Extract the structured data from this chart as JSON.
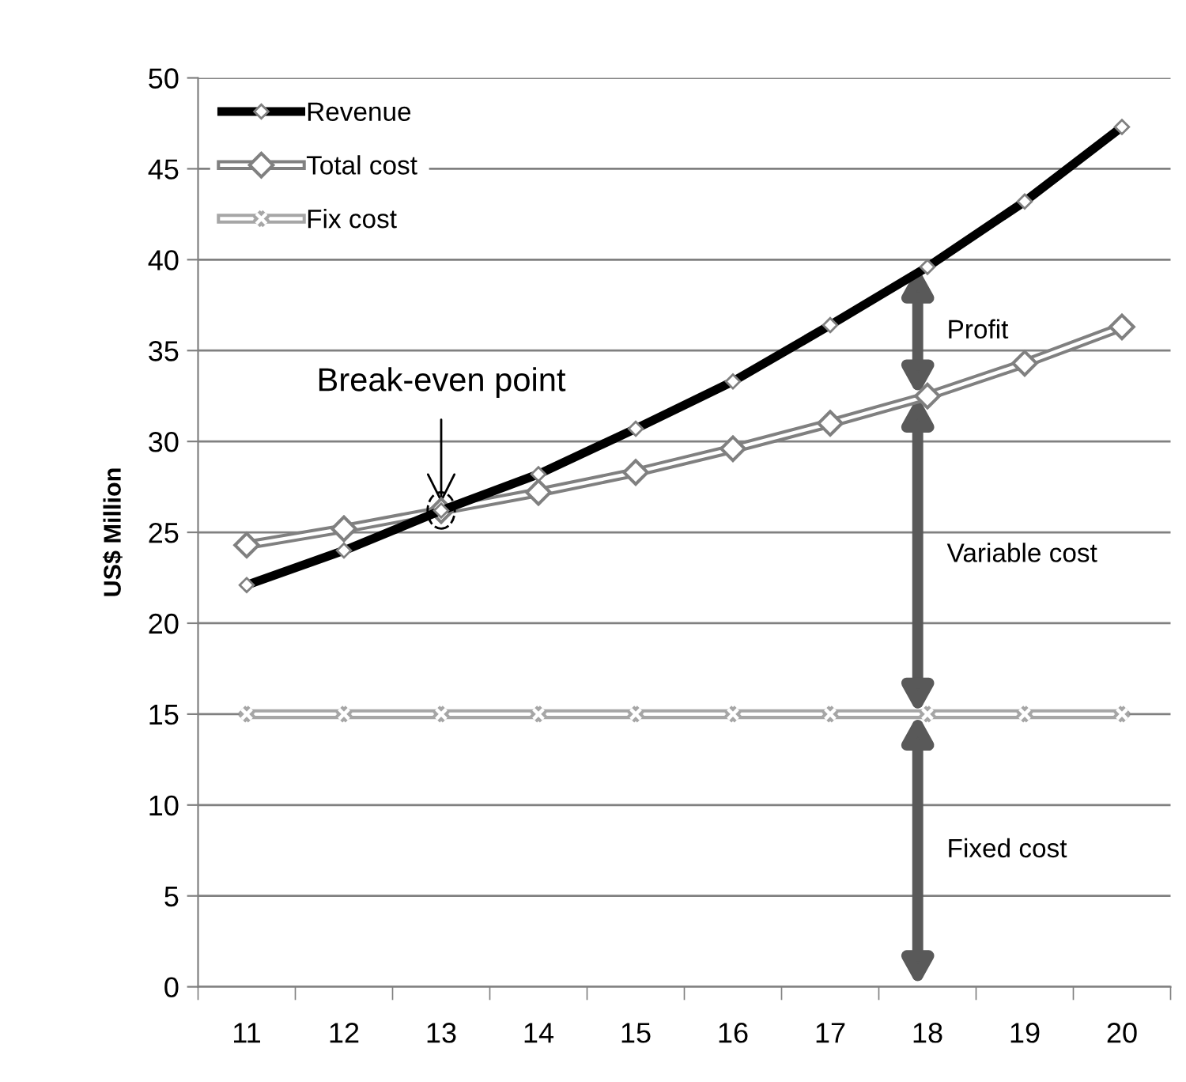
{
  "chart_data": {
    "type": "line",
    "ylabel": "US$ Million",
    "categories": [
      "11",
      "12",
      "13",
      "14",
      "15",
      "16",
      "17",
      "18",
      "19",
      "20"
    ],
    "series": [
      {
        "name": "Revenue",
        "color": "#000000",
        "marker": "diamond",
        "values": [
          22.1,
          24.0,
          26.2,
          28.2,
          30.7,
          33.3,
          36.4,
          39.6,
          43.2,
          47.3
        ]
      },
      {
        "name": "Total cost",
        "color": "#808080",
        "marker": "diamond",
        "values": [
          24.3,
          25.2,
          26.2,
          27.2,
          28.3,
          29.6,
          31.0,
          32.5,
          34.3,
          36.3
        ]
      },
      {
        "name": "Fix cost",
        "color": "#a6a6a6",
        "marker": "cross",
        "values": [
          15,
          15,
          15,
          15,
          15,
          15,
          15,
          15,
          15,
          15
        ]
      }
    ],
    "ylim": [
      0,
      50
    ],
    "yticks": [
      0,
      5,
      10,
      15,
      20,
      25,
      30,
      35,
      40,
      45,
      50
    ],
    "grid": "y",
    "legend": "top left",
    "annotations": [
      {
        "text": "Break-even point",
        "x": "13",
        "y": 26.2
      },
      "Profit",
      "Variable cost",
      "Fixed cost"
    ]
  }
}
